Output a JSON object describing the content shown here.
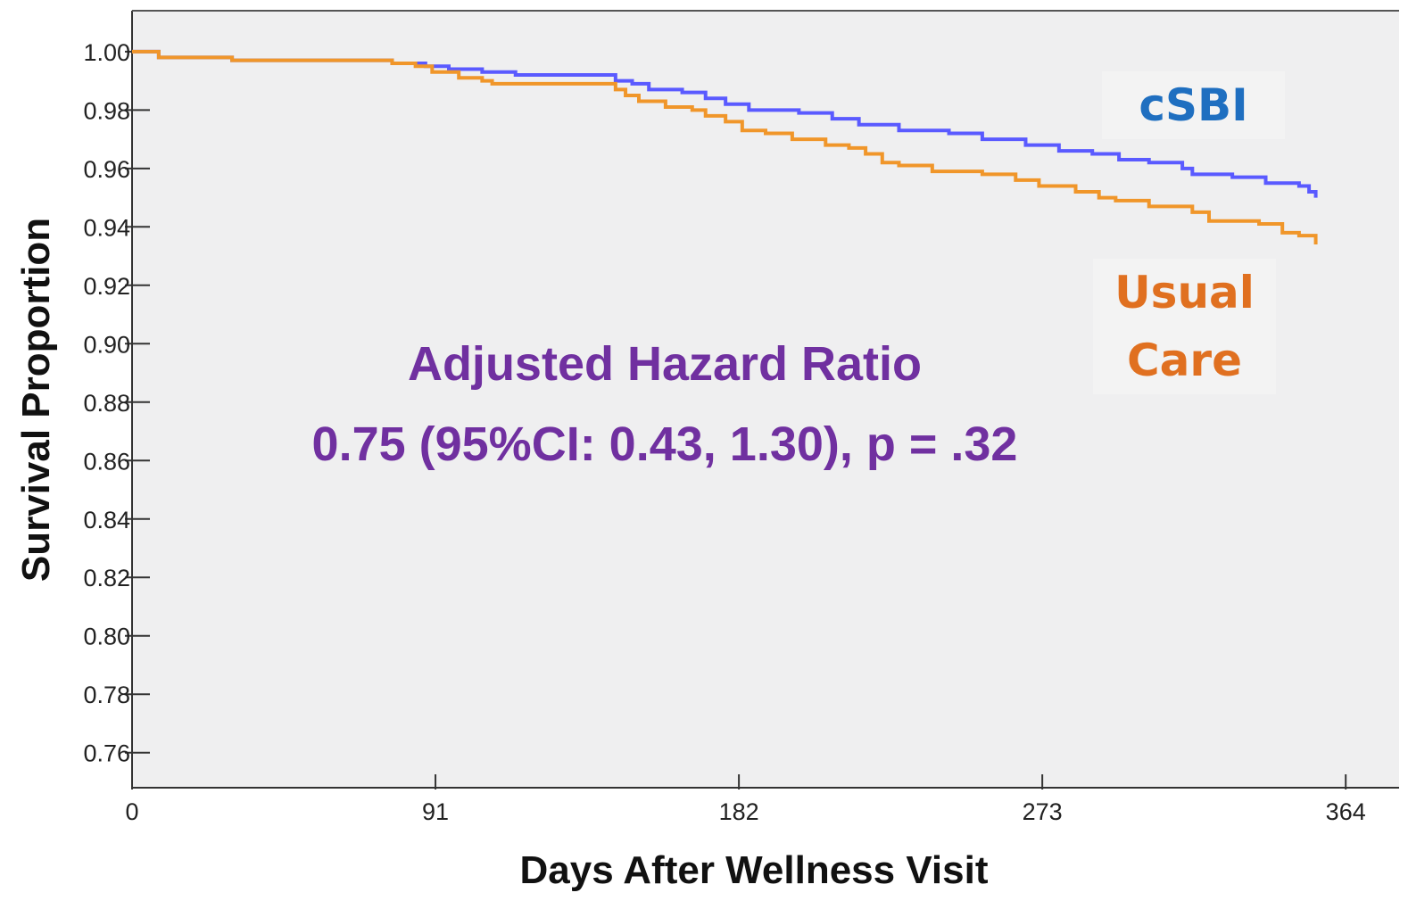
{
  "chart_data": {
    "type": "step",
    "y_label": "Survival Proportion",
    "x_label": "Days After Wellness Visit",
    "annotations": [
      "Adjusted Hazard Ratio",
      "0.75 (95%CI: 0.43, 1.30), p = .32"
    ],
    "annotation_color": "#7030a0",
    "xlim": [
      0,
      380
    ],
    "ylim": [
      0.748,
      1.014
    ],
    "xticks": [
      0,
      91,
      182,
      273,
      364
    ],
    "yticks": [
      {
        "value": 1,
        "label": "1.00"
      },
      0.98,
      0.96,
      0.94,
      0.92,
      {
        "value": 0.9,
        "label": "0.90"
      },
      0.88,
      0.86,
      0.84,
      0.82,
      {
        "value": 0.8,
        "label": "0.80"
      },
      0.78,
      0.76
    ],
    "series": [
      {
        "name": "cSBI",
        "color": "#5a5aff",
        "label_color": "#1f6fc0",
        "x": [
          0,
          8,
          30,
          78,
          88,
          95,
          105,
          115,
          145,
          150,
          155,
          165,
          172,
          178,
          185,
          200,
          210,
          218,
          230,
          245,
          255,
          268,
          278,
          288,
          296,
          305,
          315,
          318,
          330,
          340,
          350,
          353,
          355
        ],
        "values": [
          1.0,
          0.998,
          0.997,
          0.996,
          0.995,
          0.994,
          0.993,
          0.992,
          0.99,
          0.989,
          0.987,
          0.986,
          0.984,
          0.982,
          0.98,
          0.979,
          0.977,
          0.975,
          0.973,
          0.972,
          0.97,
          0.968,
          0.966,
          0.965,
          0.963,
          0.962,
          0.96,
          0.958,
          0.957,
          0.955,
          0.954,
          0.952,
          0.95
        ]
      },
      {
        "name": "Usual Care",
        "color": "#f0962a",
        "label_color": "#e07020",
        "x": [
          0,
          8,
          30,
          78,
          85,
          90,
          98,
          105,
          108,
          145,
          148,
          152,
          160,
          168,
          172,
          178,
          183,
          190,
          198,
          208,
          215,
          220,
          225,
          230,
          240,
          255,
          265,
          272,
          283,
          290,
          295,
          305,
          318,
          323,
          338,
          345,
          350,
          355
        ],
        "values": [
          1.0,
          0.998,
          0.997,
          0.996,
          0.995,
          0.993,
          0.991,
          0.99,
          0.989,
          0.987,
          0.985,
          0.983,
          0.981,
          0.98,
          0.978,
          0.976,
          0.973,
          0.972,
          0.97,
          0.968,
          0.967,
          0.965,
          0.962,
          0.961,
          0.959,
          0.958,
          0.956,
          0.954,
          0.952,
          0.95,
          0.949,
          0.947,
          0.945,
          0.942,
          0.941,
          0.938,
          0.937,
          0.934
        ]
      }
    ]
  }
}
